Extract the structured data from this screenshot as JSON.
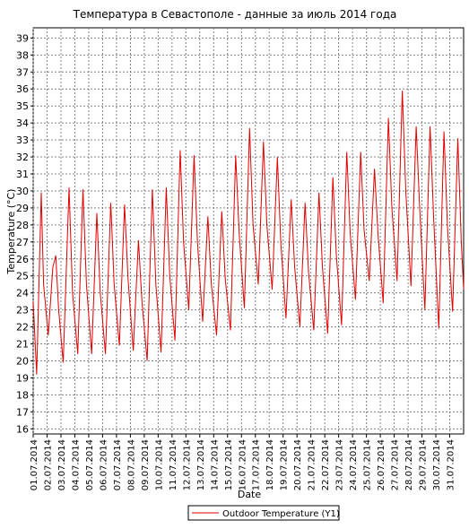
{
  "chart_data": {
    "type": "line",
    "title": "Температура в Севастополе - данные за июль 2014 года",
    "xlabel": "Date",
    "ylabel": "Temperature (°C)",
    "ylim": [
      15.7,
      39.6
    ],
    "yticks": [
      16,
      17,
      18,
      19,
      20,
      21,
      22,
      23,
      24,
      25,
      26,
      27,
      28,
      29,
      30,
      31,
      32,
      33,
      34,
      35,
      36,
      37,
      38,
      39
    ],
    "xlim": [
      "2014-07-01",
      "2014-08-01"
    ],
    "x_tick_labels": [
      "01.07.2014",
      "02.07.2014",
      "03.07.2014",
      "04.07.2014",
      "05.07.2014",
      "06.07.2014",
      "07.07.2014",
      "08.07.2014",
      "09.07.2014",
      "10.07.2014",
      "11.07.2014",
      "12.07.2014",
      "13.07.2014",
      "14.07.2014",
      "15.07.2014",
      "16.07.2014",
      "17.07.2014",
      "18.07.2014",
      "19.07.2014",
      "20.07.2014",
      "21.07.2014",
      "22.07.2014",
      "23.07.2014",
      "24.07.2014",
      "25.07.2014",
      "26.07.2014",
      "27.07.2014",
      "28.07.2014",
      "29.07.2014",
      "30.07.2014",
      "31.07.2014"
    ],
    "grid": true,
    "legend_position": "bottom-center",
    "series": [
      {
        "name": "Outdoor Temperature (Y1)",
        "color": "#e00000",
        "x": [
          "2014-07-01 00:00",
          "2014-07-01 06:00",
          "2014-07-01 14:00",
          "2014-07-01 18:00",
          "2014-07-02 02:00",
          "2014-07-02 10:00",
          "2014-07-02 15:00",
          "2014-07-02 20:00",
          "2014-07-03 04:00",
          "2014-07-03 14:00",
          "2014-07-03 20:00",
          "2014-07-04 05:00",
          "2014-07-04 14:00",
          "2014-07-04 20:00",
          "2014-07-05 05:00",
          "2014-07-05 14:00",
          "2014-07-05 20:00",
          "2014-07-06 05:00",
          "2014-07-06 14:00",
          "2014-07-06 20:00",
          "2014-07-07 05:00",
          "2014-07-07 14:00",
          "2014-07-07 20:00",
          "2014-07-08 05:00",
          "2014-07-08 14:00",
          "2014-07-08 20:00",
          "2014-07-09 05:00",
          "2014-07-09 14:00",
          "2014-07-09 20:00",
          "2014-07-10 05:00",
          "2014-07-10 14:00",
          "2014-07-10 20:00",
          "2014-07-11 05:00",
          "2014-07-11 14:00",
          "2014-07-11 20:00",
          "2014-07-12 05:00",
          "2014-07-12 14:00",
          "2014-07-12 20:00",
          "2014-07-13 05:00",
          "2014-07-13 14:00",
          "2014-07-13 20:00",
          "2014-07-14 05:00",
          "2014-07-14 14:00",
          "2014-07-14 20:00",
          "2014-07-15 05:00",
          "2014-07-15 14:00",
          "2014-07-15 20:00",
          "2014-07-16 05:00",
          "2014-07-16 14:00",
          "2014-07-16 20:00",
          "2014-07-17 05:00",
          "2014-07-17 14:00",
          "2014-07-17 20:00",
          "2014-07-18 05:00",
          "2014-07-18 14:00",
          "2014-07-18 20:00",
          "2014-07-19 05:00",
          "2014-07-19 14:00",
          "2014-07-19 20:00",
          "2014-07-20 05:00",
          "2014-07-20 14:00",
          "2014-07-20 20:00",
          "2014-07-21 05:00",
          "2014-07-21 14:00",
          "2014-07-21 20:00",
          "2014-07-22 05:00",
          "2014-07-22 14:00",
          "2014-07-22 20:00",
          "2014-07-23 05:00",
          "2014-07-23 14:00",
          "2014-07-23 20:00",
          "2014-07-24 05:00",
          "2014-07-24 14:00",
          "2014-07-24 20:00",
          "2014-07-25 05:00",
          "2014-07-25 14:00",
          "2014-07-25 20:00",
          "2014-07-26 05:00",
          "2014-07-26 14:00",
          "2014-07-26 20:00",
          "2014-07-27 05:00",
          "2014-07-27 14:00",
          "2014-07-27 20:00",
          "2014-07-28 05:00",
          "2014-07-28 14:00",
          "2014-07-28 20:00",
          "2014-07-29 05:00",
          "2014-07-29 14:00",
          "2014-07-29 20:00",
          "2014-07-30 05:00",
          "2014-07-30 14:00",
          "2014-07-30 20:00",
          "2014-07-31 05:00",
          "2014-07-31 14:00",
          "2014-07-31 20:00",
          "2014-08-01 00:00"
        ],
        "y": [
          23.5,
          19.2,
          29.9,
          24.5,
          21.5,
          25.5,
          26.2,
          23.0,
          19.9,
          30.2,
          24.0,
          20.4,
          30.1,
          24.5,
          20.4,
          28.7,
          24.0,
          20.4,
          29.3,
          24.5,
          20.9,
          29.2,
          24.8,
          20.6,
          27.1,
          23.5,
          20.0,
          30.1,
          24.5,
          20.5,
          30.2,
          25.0,
          21.2,
          32.4,
          27.0,
          23.0,
          32.1,
          27.0,
          22.3,
          28.5,
          24.5,
          21.5,
          28.8,
          24.8,
          21.8,
          32.1,
          27.5,
          23.1,
          33.7,
          28.0,
          24.5,
          32.9,
          28.0,
          24.2,
          32.0,
          27.0,
          22.5,
          29.5,
          25.5,
          22.0,
          29.3,
          25.2,
          21.8,
          29.9,
          25.5,
          21.6,
          30.8,
          26.2,
          22.1,
          32.3,
          27.5,
          23.6,
          32.3,
          27.7,
          24.7,
          31.3,
          27.5,
          23.4,
          34.3,
          29.0,
          24.7,
          35.9,
          30.0,
          24.4,
          33.8,
          29.0,
          23.0,
          33.8,
          28.5,
          21.9,
          33.5,
          28.0,
          22.9,
          33.1,
          27.0,
          24.2
        ]
      }
    ]
  }
}
